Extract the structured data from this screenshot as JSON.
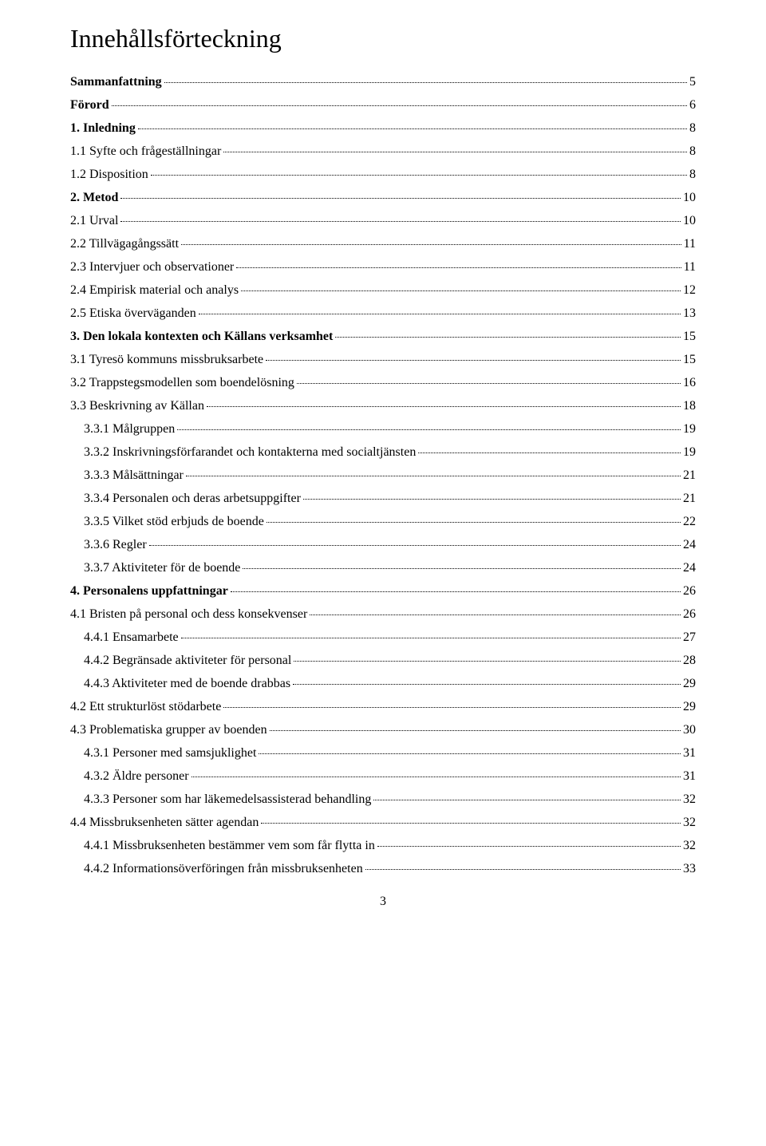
{
  "title": "Innehållsförteckning",
  "pageNumber": "3",
  "toc": [
    {
      "label": "Sammanfattning",
      "page": "5",
      "bold": true,
      "indent": 0
    },
    {
      "label": "Förord",
      "page": "6",
      "bold": true,
      "indent": 0
    },
    {
      "label": "1. Inledning",
      "page": "8",
      "bold": true,
      "indent": 0
    },
    {
      "label": "1.1 Syfte och frågeställningar",
      "page": "8",
      "bold": false,
      "indent": 0
    },
    {
      "label": "1.2 Disposition",
      "page": "8",
      "bold": false,
      "indent": 0
    },
    {
      "label": "2. Metod",
      "page": "10",
      "bold": true,
      "indent": 0
    },
    {
      "label": "2.1 Urval",
      "page": "10",
      "bold": false,
      "indent": 0
    },
    {
      "label": "2.2 Tillvägagångssätt",
      "page": "11",
      "bold": false,
      "indent": 0
    },
    {
      "label": "2.3 Intervjuer och observationer",
      "page": "11",
      "bold": false,
      "indent": 0
    },
    {
      "label": "2.4 Empirisk material och analys",
      "page": "12",
      "bold": false,
      "indent": 0
    },
    {
      "label": "2.5 Etiska överväganden",
      "page": "13",
      "bold": false,
      "indent": 0
    },
    {
      "label": "3. Den lokala kontexten och Källans verksamhet",
      "page": "15",
      "bold": true,
      "indent": 0
    },
    {
      "label": "3.1 Tyresö kommuns missbruksarbete",
      "page": "15",
      "bold": false,
      "indent": 0
    },
    {
      "label": "3.2 Trappstegsmodellen som boendelösning",
      "page": "16",
      "bold": false,
      "indent": 0
    },
    {
      "label": "3.3 Beskrivning av Källan",
      "page": "18",
      "bold": false,
      "indent": 0
    },
    {
      "label": "3.3.1 Målgruppen",
      "page": "19",
      "bold": false,
      "indent": 1
    },
    {
      "label": "3.3.2 Inskrivningsförfarandet och kontakterna med socialtjänsten",
      "page": "19",
      "bold": false,
      "indent": 1
    },
    {
      "label": "3.3.3 Målsättningar",
      "page": "21",
      "bold": false,
      "indent": 1
    },
    {
      "label": "3.3.4 Personalen och deras arbetsuppgifter",
      "page": "21",
      "bold": false,
      "indent": 1
    },
    {
      "label": "3.3.5 Vilket stöd erbjuds de boende",
      "page": "22",
      "bold": false,
      "indent": 1
    },
    {
      "label": "3.3.6 Regler",
      "page": "24",
      "bold": false,
      "indent": 1
    },
    {
      "label": "3.3.7 Aktiviteter för de boende",
      "page": "24",
      "bold": false,
      "indent": 1
    },
    {
      "label": "4. Personalens uppfattningar",
      "page": "26",
      "bold": true,
      "indent": 0
    },
    {
      "label": "4.1 Bristen på personal och dess konsekvenser",
      "page": "26",
      "bold": false,
      "indent": 0
    },
    {
      "label": "4.4.1 Ensamarbete",
      "page": "27",
      "bold": false,
      "indent": 1
    },
    {
      "label": "4.4.2 Begränsade aktiviteter för personal",
      "page": "28",
      "bold": false,
      "indent": 1
    },
    {
      "label": "4.4.3 Aktiviteter med de boende drabbas",
      "page": "29",
      "bold": false,
      "indent": 1
    },
    {
      "label": "4.2 Ett strukturlöst stödarbete",
      "page": "29",
      "bold": false,
      "indent": 0
    },
    {
      "label": "4.3 Problematiska grupper av boenden",
      "page": "30",
      "bold": false,
      "indent": 0
    },
    {
      "label": "4.3.1 Personer med samsjuklighet",
      "page": "31",
      "bold": false,
      "indent": 1
    },
    {
      "label": "4.3.2 Äldre personer",
      "page": "31",
      "bold": false,
      "indent": 1
    },
    {
      "label": "4.3.3 Personer som har läkemedelsassisterad behandling",
      "page": "32",
      "bold": false,
      "indent": 1
    },
    {
      "label": "4.4 Missbruksenheten sätter agendan",
      "page": "32",
      "bold": false,
      "indent": 0
    },
    {
      "label": "4.4.1 Missbruksenheten bestämmer vem som får flytta in",
      "page": "32",
      "bold": false,
      "indent": 1
    },
    {
      "label": "4.4.2 Informationsöverföringen från missbruksenheten",
      "page": "33",
      "bold": false,
      "indent": 1
    }
  ]
}
